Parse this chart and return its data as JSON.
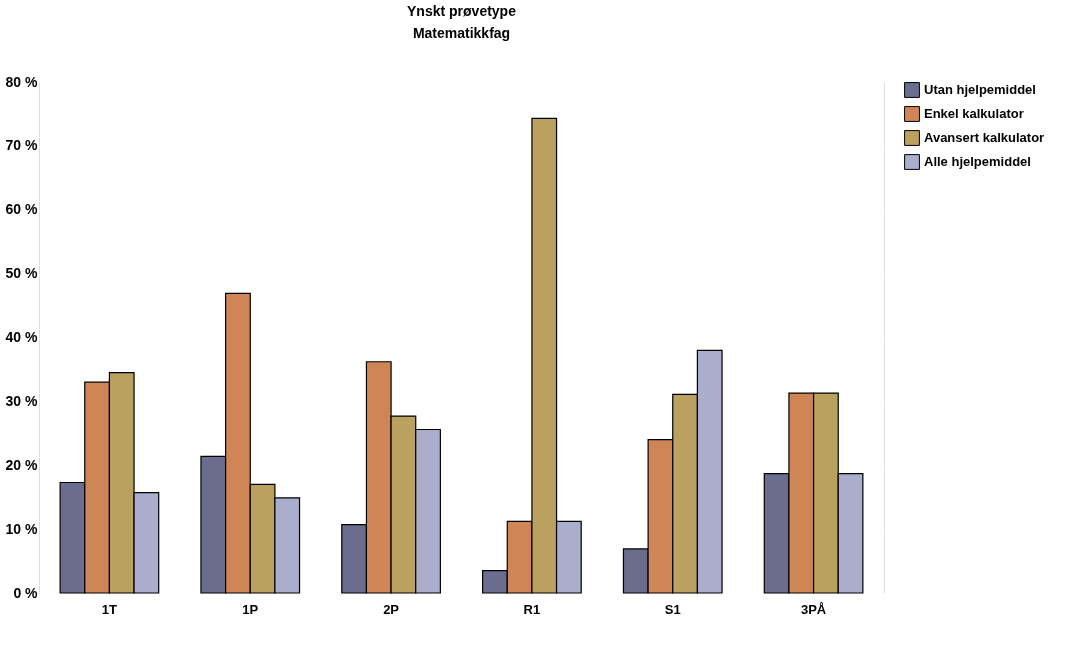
{
  "chart_data": {
    "type": "bar",
    "title": "Ynskt prøvetype",
    "subtitle": "Matematikkfag",
    "categories": [
      "1T",
      "1P",
      "2P",
      "R1",
      "S1",
      "3PÅ"
    ],
    "series": [
      {
        "name": "Utan hjelpemiddel",
        "color": "#6b6d8f",
        "values": [
          17.3,
          21.4,
          10.7,
          3.5,
          6.9,
          18.7
        ]
      },
      {
        "name": "Enkel kalkulator",
        "color": "#d08557",
        "values": [
          33.0,
          46.9,
          36.2,
          11.2,
          24.0,
          31.3
        ]
      },
      {
        "name": "Avansert kalkulator",
        "color": "#bba15f",
        "values": [
          34.5,
          17.0,
          27.7,
          74.3,
          31.1,
          31.3
        ]
      },
      {
        "name": "Alle hjelpemiddel",
        "color": "#aaadcc",
        "values": [
          15.7,
          14.9,
          25.6,
          11.2,
          38.0,
          18.7
        ]
      }
    ],
    "ylim": [
      0,
      80
    ],
    "yticks": [
      {
        "value": 0,
        "label": "0 %"
      },
      {
        "value": 10,
        "label": "10 %"
      },
      {
        "value": 20,
        "label": "20 %"
      },
      {
        "value": 30,
        "label": "30 %"
      },
      {
        "value": 40,
        "label": "40 %"
      },
      {
        "value": 50,
        "label": "50 %"
      },
      {
        "value": 60,
        "label": "60 %"
      },
      {
        "value": 70,
        "label": "70 %"
      },
      {
        "value": 80,
        "label": "80 %"
      }
    ],
    "grid": "y",
    "legend": "top right"
  }
}
